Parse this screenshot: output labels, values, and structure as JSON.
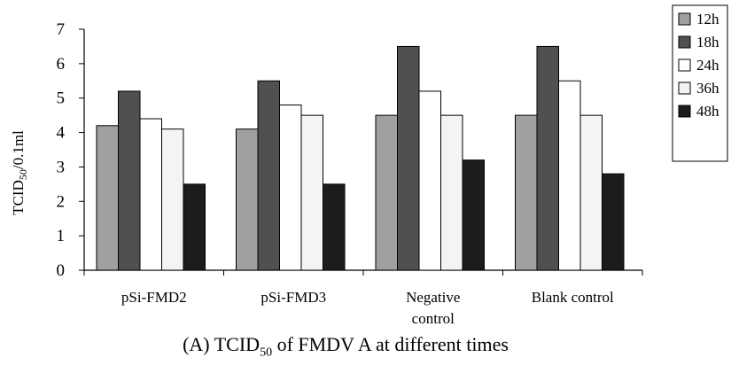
{
  "chart_data": {
    "type": "bar",
    "categories": [
      [
        "pSi-FMD2"
      ],
      [
        "pSi-FMD3"
      ],
      [
        "Negative",
        "control"
      ],
      [
        "Blank control"
      ]
    ],
    "series": [
      {
        "name": "12h",
        "color": "#a0a0a0",
        "values": [
          4.2,
          4.1,
          4.5,
          4.5
        ]
      },
      {
        "name": "18h",
        "color": "#505050",
        "values": [
          5.2,
          5.5,
          6.5,
          6.5
        ]
      },
      {
        "name": "24h",
        "color": "#ffffff",
        "values": [
          4.4,
          4.8,
          5.2,
          5.5
        ]
      },
      {
        "name": "36h",
        "color": "#f4f4f4",
        "values": [
          4.1,
          4.5,
          4.5,
          4.5
        ]
      },
      {
        "name": "48h",
        "color": "#1c1c1c",
        "values": [
          2.5,
          2.5,
          3.2,
          2.8
        ]
      }
    ],
    "ylabel_parts": {
      "pre": "TCID",
      "sub": "50",
      "post": "/0.1ml"
    },
    "ylim": [
      0,
      7
    ],
    "yticks": [
      0,
      1,
      2,
      3,
      4,
      5,
      6,
      7
    ],
    "grid": false,
    "legend_position": "top-right"
  },
  "caption": {
    "prefix": "(A) TCID",
    "sub": "50",
    "suffix": " of FMDV A at different times"
  }
}
